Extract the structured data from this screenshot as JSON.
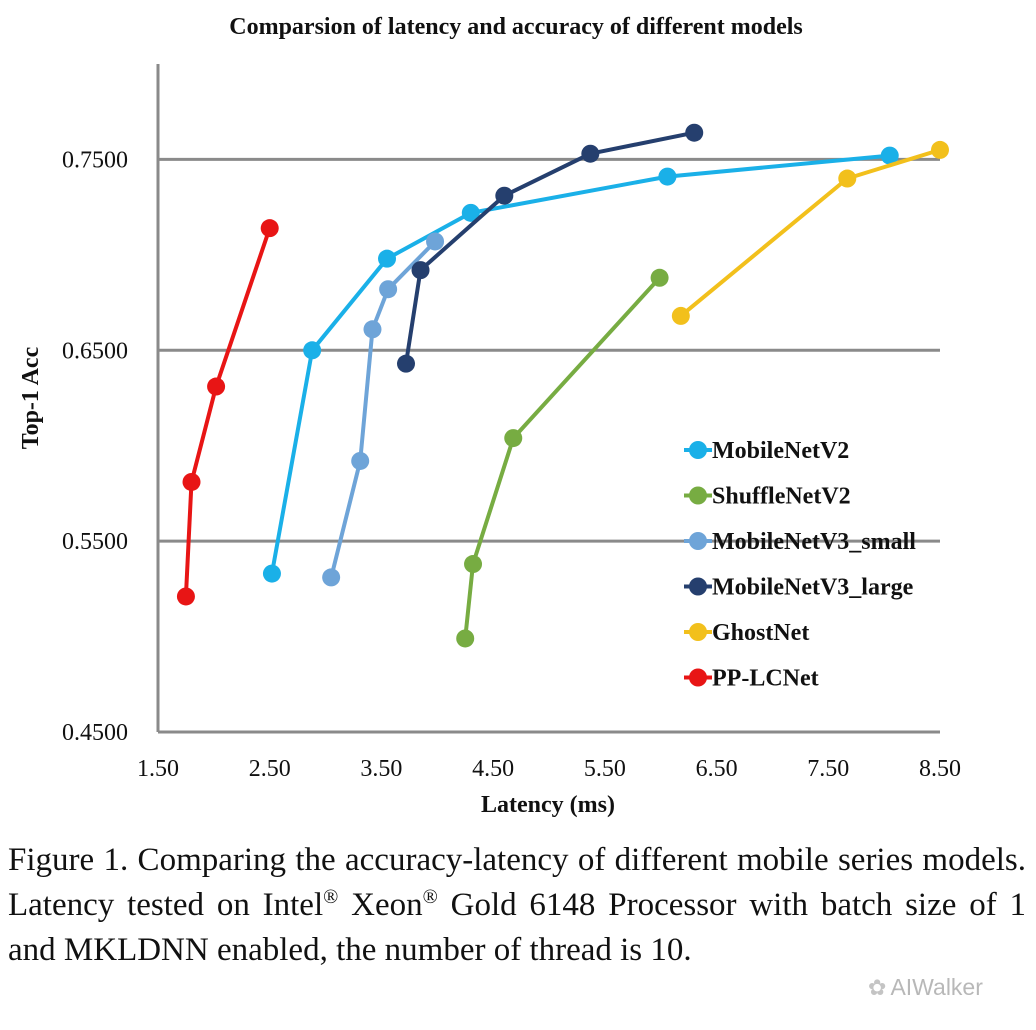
{
  "chart_data": {
    "type": "line",
    "title": "Comparsion of latency and accuracy of different models",
    "xlabel": "Latency (ms)",
    "ylabel": "Top-1 Acc",
    "xlim": [
      1.5,
      8.5
    ],
    "ylim": [
      0.45,
      0.8
    ],
    "xticks": [
      "1.50",
      "2.50",
      "3.50",
      "4.50",
      "5.50",
      "6.50",
      "7.50",
      "8.50"
    ],
    "yticks": [
      "0.4500",
      "0.5500",
      "0.6500",
      "0.7500"
    ],
    "grid": "horizontal",
    "legend_position": "right",
    "series": [
      {
        "name": "MobileNetV2",
        "color": "#1ab0e8",
        "points": [
          [
            2.52,
            0.533
          ],
          [
            2.88,
            0.65
          ],
          [
            3.55,
            0.698
          ],
          [
            4.3,
            0.722
          ],
          [
            6.06,
            0.741
          ],
          [
            8.05,
            0.752
          ]
        ]
      },
      {
        "name": "ShuffleNetV2",
        "color": "#77ac42",
        "points": [
          [
            4.25,
            0.499
          ],
          [
            4.32,
            0.538
          ],
          [
            4.68,
            0.604
          ],
          [
            5.99,
            0.688
          ]
        ]
      },
      {
        "name": "MobileNetV3_small",
        "color": "#6ea4d8",
        "points": [
          [
            3.05,
            0.531
          ],
          [
            3.31,
            0.592
          ],
          [
            3.42,
            0.661
          ],
          [
            3.56,
            0.682
          ],
          [
            3.98,
            0.707
          ]
        ]
      },
      {
        "name": "MobileNetV3_large",
        "color": "#253f6e",
        "points": [
          [
            3.72,
            0.643
          ],
          [
            3.85,
            0.692
          ],
          [
            4.6,
            0.731
          ],
          [
            5.37,
            0.753
          ],
          [
            6.3,
            0.764
          ]
        ]
      },
      {
        "name": "GhostNet",
        "color": "#f2c01c",
        "points": [
          [
            6.18,
            0.668
          ],
          [
            7.67,
            0.74
          ],
          [
            8.5,
            0.755
          ]
        ]
      },
      {
        "name": "PP-LCNet",
        "color": "#e81515",
        "points": [
          [
            1.75,
            0.521
          ],
          [
            1.8,
            0.581
          ],
          [
            2.02,
            0.631
          ],
          [
            2.5,
            0.714
          ]
        ]
      }
    ]
  },
  "caption": {
    "prefix": "Figure 1. Comparing the accuracy-latency of different mobile series models. Latency tested on Intel",
    "reg1": "®",
    "mid1": " Xeon",
    "reg2": "®",
    "suffix": " Gold 6148 Processor with batch size of 1 and MKLDNN enabled, the number of thread is 10."
  },
  "watermark": {
    "icon": "wechat-icon",
    "text": "AIWalker"
  }
}
